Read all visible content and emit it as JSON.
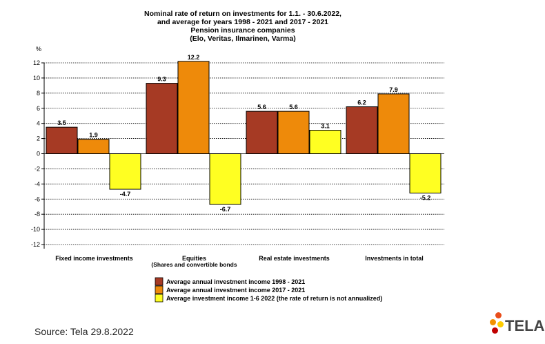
{
  "chart_data": {
    "type": "bar",
    "title_lines": [
      "Nominal rate of return on investments for 1.1. - 30.6.2022,",
      "and average for years 1998 - 2021 and 2017 - 2021",
      "Pension insurance companies",
      "(Elo, Veritas, Ilmarinen, Varma)"
    ],
    "ylabel": "%",
    "ylim": [
      -12,
      12
    ],
    "yticks": [
      12,
      10,
      8,
      6,
      4,
      2,
      0,
      -2,
      -4,
      -6,
      -8,
      -10,
      -12
    ],
    "categories": [
      "Fixed income investments",
      "Equities",
      "Real estate investments",
      "Investments  in total"
    ],
    "category_sublabels": [
      "",
      "(Shares  and  convertible bonds",
      "",
      ""
    ],
    "series": [
      {
        "name": "Average annual investment income 1998 - 2021",
        "color": "#A63A24",
        "values": [
          3.5,
          9.3,
          5.6,
          6.2
        ],
        "labels": [
          "3.5",
          "9.3",
          "5.6",
          "6.2"
        ]
      },
      {
        "name": "Average annual investment income 2017 - 2021",
        "color": "#EE8A0A",
        "values": [
          1.9,
          12.2,
          5.6,
          7.9
        ],
        "labels": [
          "1.9",
          "12.2",
          "5.6",
          "7.9"
        ]
      },
      {
        "name": "Average investment income 1-6 2022 (the rate of return is not annualized)",
        "color": "#FFFF22",
        "values": [
          -4.7,
          -6.7,
          3.1,
          -5.2
        ],
        "labels": [
          "-4.7",
          "-6.7",
          "3.1",
          "-5.2"
        ]
      }
    ],
    "grid": true,
    "legend_position": "bottom-center"
  },
  "footer": {
    "source": "Source: Tela 29.8.2022"
  },
  "logo": {
    "text": "TELA",
    "dot_colors": [
      "#E94E1B",
      "#F39200",
      "#FFCC00",
      "#C00000"
    ]
  }
}
